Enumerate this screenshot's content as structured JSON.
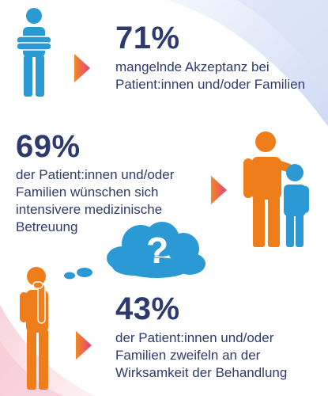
{
  "stats": [
    {
      "value": "71%",
      "text": "mangelnde Akzeptanz bei Patient:innen und/oder Familien",
      "figure": "person-arms-crossed-icon"
    },
    {
      "value": "69%",
      "text": "der Patient:innen und/oder Familien wünschen sich intensivere medizinische Betreuung",
      "figure": "adult-and-child-icon"
    },
    {
      "value": "43%",
      "text": "der Patient:innen und/oder Familien zweifeln an der Wirksamkeit der Behandlung",
      "figure": "thinking-person-icon"
    }
  ],
  "thought_bubble_symbol": "?",
  "colors": {
    "text": "#2e3a6e",
    "figure_blue": "#2b9ad4",
    "figure_orange": "#ef7d1a",
    "arrow_start": "#f08a24",
    "arrow_end": "#e8407a",
    "bubble": "#2b9ad4"
  }
}
